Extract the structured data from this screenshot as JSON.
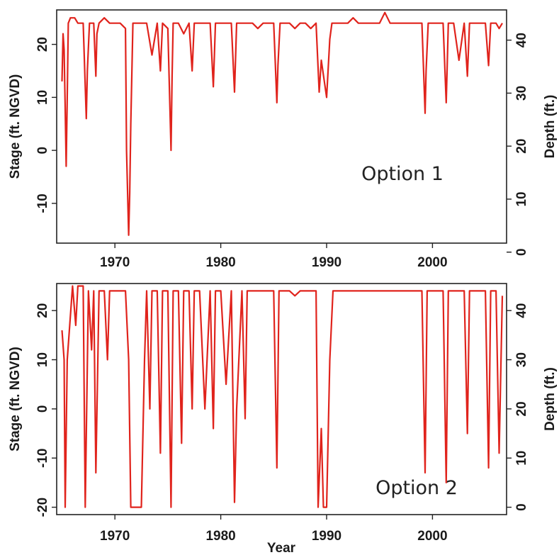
{
  "chart_data": [
    {
      "type": "line",
      "annotation": "Option 1",
      "xlabel": "",
      "ylabel": "Stage (ft. NGVD)",
      "y2label": "Depth (ft.)",
      "xlim": [
        1964.5,
        2007.0
      ],
      "ylim": [
        -17.5,
        26.5
      ],
      "y2lim": [
        1.7,
        45.7
      ],
      "xticks": [
        "1970",
        "1980",
        "1990",
        "2000"
      ],
      "yticks": [
        "-10",
        "0",
        "10",
        "20"
      ],
      "y2ticks": [
        "0",
        "10",
        "20",
        "30",
        "40"
      ],
      "grid": false,
      "color": "#e0231c",
      "series": [
        {
          "x": [
            1965.0,
            1965.1,
            1965.2,
            1965.3,
            1965.4,
            1965.5,
            1965.6,
            1965.8,
            1966.2,
            1966.5,
            1967.0,
            1967.3,
            1967.4,
            1967.6,
            1968.0,
            1968.2,
            1968.3,
            1968.5,
            1969.0,
            1969.5,
            1970.0,
            1970.5,
            1971.0,
            1971.1,
            1971.3,
            1971.4,
            1971.5,
            1971.7,
            1972.0,
            1972.5,
            1973.0,
            1973.5,
            1974.0,
            1974.3,
            1974.5,
            1975.0,
            1975.3,
            1975.4,
            1975.5,
            1976.0,
            1976.5,
            1977.0,
            1977.3,
            1977.5,
            1978.0,
            1978.5,
            1979.0,
            1979.3,
            1979.5,
            1980.0,
            1980.5,
            1981.0,
            1981.3,
            1981.5,
            1982.0,
            1982.5,
            1983.0,
            1983.5,
            1984.0,
            1984.5,
            1985.0,
            1985.3,
            1985.4,
            1985.6,
            1986.0,
            1986.5,
            1987.0,
            1987.5,
            1988.0,
            1988.5,
            1989.0,
            1989.3,
            1989.5,
            1990.0,
            1990.3,
            1990.5,
            1991.0,
            1991.5,
            1992.0,
            1992.5,
            1993.0,
            1993.5,
            1994.0,
            1994.5,
            1995.0,
            1995.5,
            1996.0,
            1996.5,
            1997.0,
            1997.5,
            1998.0,
            1998.5,
            1999.0,
            1999.3,
            1999.4,
            1999.6,
            2000.0,
            2000.5,
            2001.0,
            2001.3,
            2001.5,
            2002.0,
            2002.5,
            2003.0,
            2003.3,
            2003.5,
            2004.0,
            2004.5,
            2005.0,
            2005.3,
            2005.5,
            2006.0,
            2006.3,
            2006.6
          ],
          "y": [
            13,
            22,
            19,
            8,
            -3,
            10,
            24,
            25,
            25,
            24,
            24,
            6,
            15,
            24,
            24,
            14,
            22,
            24,
            25,
            24,
            24,
            24,
            23,
            0,
            -16,
            -8,
            5,
            24,
            24,
            24,
            24,
            18,
            24,
            15,
            24,
            23,
            0,
            14,
            24,
            24,
            22,
            24,
            15,
            24,
            24,
            24,
            24,
            12,
            24,
            24,
            24,
            24,
            11,
            24,
            24,
            24,
            24,
            23,
            24,
            24,
            24,
            9,
            16,
            24,
            24,
            24,
            23,
            24,
            24,
            23,
            24,
            11,
            17,
            10,
            21,
            24,
            24,
            24,
            24,
            25,
            24,
            24,
            24,
            24,
            24,
            26,
            24,
            24,
            24,
            24,
            24,
            24,
            24,
            7,
            15,
            24,
            24,
            24,
            24,
            9,
            24,
            24,
            17,
            24,
            14,
            24,
            24,
            24,
            24,
            16,
            24,
            24,
            23,
            24
          ]
        }
      ]
    },
    {
      "type": "line",
      "annotation": "Option 2",
      "xlabel": "Year",
      "ylabel": "Stage (ft. NGVD)",
      "y2label": "Depth (ft.)",
      "xlim": [
        1964.5,
        2007.0
      ],
      "ylim": [
        -21.5,
        25.5
      ],
      "y2lim": [
        -1.5,
        45.5
      ],
      "xticks": [
        "1970",
        "1980",
        "1990",
        "2000"
      ],
      "yticks": [
        "-20",
        "-10",
        "0",
        "10",
        "20"
      ],
      "y2ticks": [
        "0",
        "10",
        "20",
        "30",
        "40"
      ],
      "grid": false,
      "color": "#e0231c",
      "series": [
        {
          "x": [
            1965.0,
            1965.2,
            1965.3,
            1965.5,
            1966.0,
            1966.3,
            1966.5,
            1967.0,
            1967.2,
            1967.5,
            1967.8,
            1968.0,
            1968.2,
            1968.5,
            1969.0,
            1969.3,
            1969.5,
            1970.0,
            1970.5,
            1971.0,
            1971.3,
            1971.5,
            1972.0,
            1972.3,
            1972.5,
            1972.8,
            1973.0,
            1973.3,
            1973.5,
            1974.0,
            1974.3,
            1974.5,
            1975.0,
            1975.3,
            1975.5,
            1976.0,
            1976.3,
            1976.5,
            1977.0,
            1977.3,
            1977.5,
            1978.0,
            1978.5,
            1979.0,
            1979.3,
            1979.5,
            1980.0,
            1980.5,
            1981.0,
            1981.3,
            1981.5,
            1982.0,
            1982.3,
            1982.5,
            1983.0,
            1983.5,
            1984.0,
            1984.5,
            1985.0,
            1985.3,
            1985.5,
            1986.0,
            1986.5,
            1987.0,
            1987.5,
            1988.0,
            1988.5,
            1989.0,
            1989.2,
            1989.5,
            1989.7,
            1990.0,
            1990.3,
            1990.6,
            1991.0,
            1991.5,
            1992.0,
            1992.5,
            1993.0,
            1993.5,
            1994.0,
            1994.5,
            1995.0,
            1995.5,
            1996.0,
            1996.5,
            1997.0,
            1997.5,
            1998.0,
            1998.5,
            1999.0,
            1999.3,
            1999.5,
            2000.0,
            2000.5,
            2001.0,
            2001.3,
            2001.5,
            2002.0,
            2002.5,
            2003.0,
            2003.3,
            2003.5,
            2004.0,
            2004.5,
            2005.0,
            2005.3,
            2005.5,
            2006.0,
            2006.3,
            2006.6
          ],
          "y": [
            16,
            10,
            -20,
            10,
            25,
            17,
            25,
            25,
            -20,
            24,
            12,
            24,
            -13,
            24,
            24,
            10,
            24,
            24,
            24,
            24,
            10,
            -20,
            -20,
            -20,
            -20,
            10,
            24,
            0,
            24,
            24,
            -9,
            24,
            24,
            -20,
            24,
            24,
            -7,
            24,
            24,
            0,
            24,
            24,
            0,
            24,
            -4,
            24,
            24,
            5,
            24,
            -19,
            0,
            24,
            -2,
            24,
            24,
            24,
            24,
            24,
            24,
            -12,
            24,
            24,
            24,
            23,
            24,
            24,
            24,
            24,
            -20,
            -4,
            -20,
            -20,
            10,
            24,
            24,
            24,
            24,
            24,
            24,
            24,
            24,
            24,
            24,
            24,
            24,
            24,
            24,
            24,
            24,
            24,
            24,
            -13,
            24,
            24,
            24,
            24,
            -15,
            24,
            24,
            24,
            24,
            -5,
            24,
            24,
            24,
            24,
            -12,
            24,
            24,
            -9,
            23
          ]
        }
      ]
    }
  ]
}
